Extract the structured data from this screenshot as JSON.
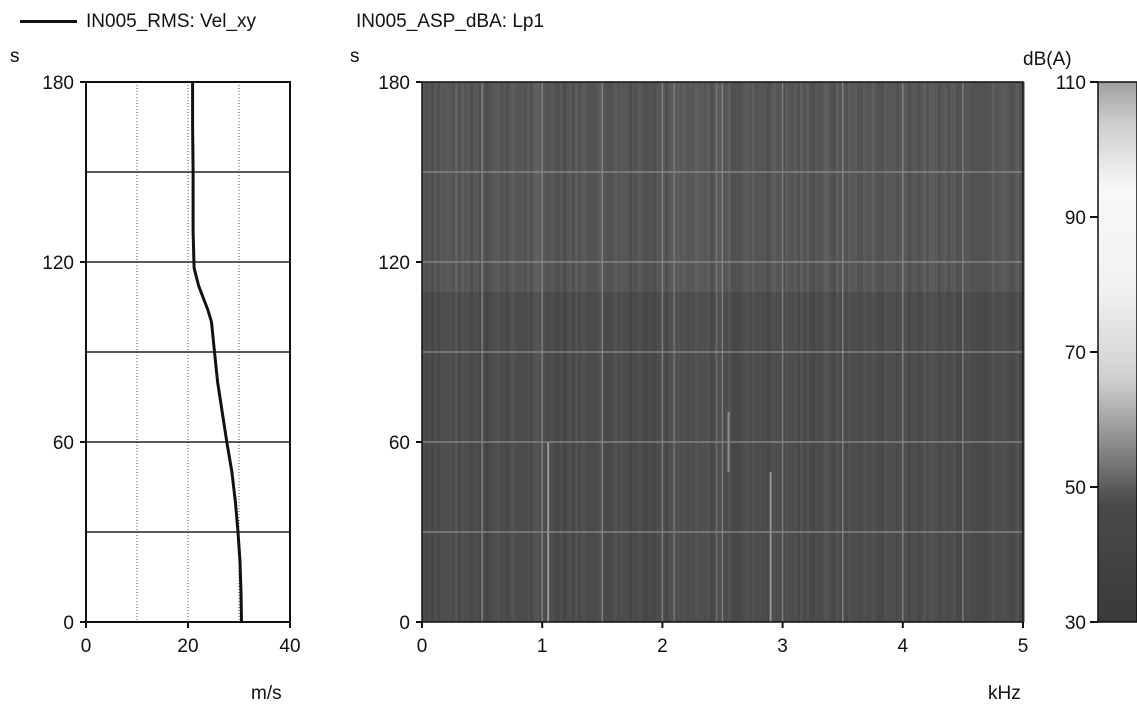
{
  "legend": {
    "left_series": "IN005_RMS: Vel_xy",
    "right_series": "IN005_ASP_dBA: Lp1"
  },
  "colors": {
    "line": "#111111",
    "grid": "#555555",
    "spectrogram_bg": "#5a5a5a",
    "spectrogram_grid": "#8c8c8c"
  },
  "chart_data": [
    {
      "type": "line",
      "ylabel": "s",
      "xlabel": "m/s",
      "xlim": [
        0,
        40
      ],
      "ylim": [
        0,
        180
      ],
      "xticks": [
        0,
        20,
        40
      ],
      "yticks": [
        0,
        60,
        120,
        180
      ],
      "grid": true,
      "series": [
        {
          "name": "IN005_RMS: Vel_xy",
          "x": [
            30.5,
            30.4,
            30.2,
            29.8,
            29.3,
            28.6,
            27.6,
            26.7,
            25.8,
            25.2,
            24.6,
            23.9,
            23.0,
            22.1,
            21.2,
            21.0,
            21.0,
            20.9,
            20.9
          ],
          "y": [
            0,
            10,
            20,
            30,
            40,
            50,
            60,
            70,
            80,
            90,
            100,
            104,
            108,
            112,
            118,
            130,
            150,
            165,
            180
          ]
        }
      ]
    },
    {
      "type": "heatmap",
      "ylabel": "s",
      "xlabel": "kHz",
      "xlim": [
        0,
        5
      ],
      "ylim": [
        0,
        180
      ],
      "xticks": [
        0,
        1,
        2,
        3,
        4,
        5
      ],
      "yticks": [
        0,
        60,
        120,
        180
      ],
      "colorbar": {
        "label": "dB(A)",
        "range": [
          30,
          110
        ],
        "ticks": [
          30,
          50,
          70,
          90,
          110
        ]
      },
      "grid": true
    }
  ]
}
